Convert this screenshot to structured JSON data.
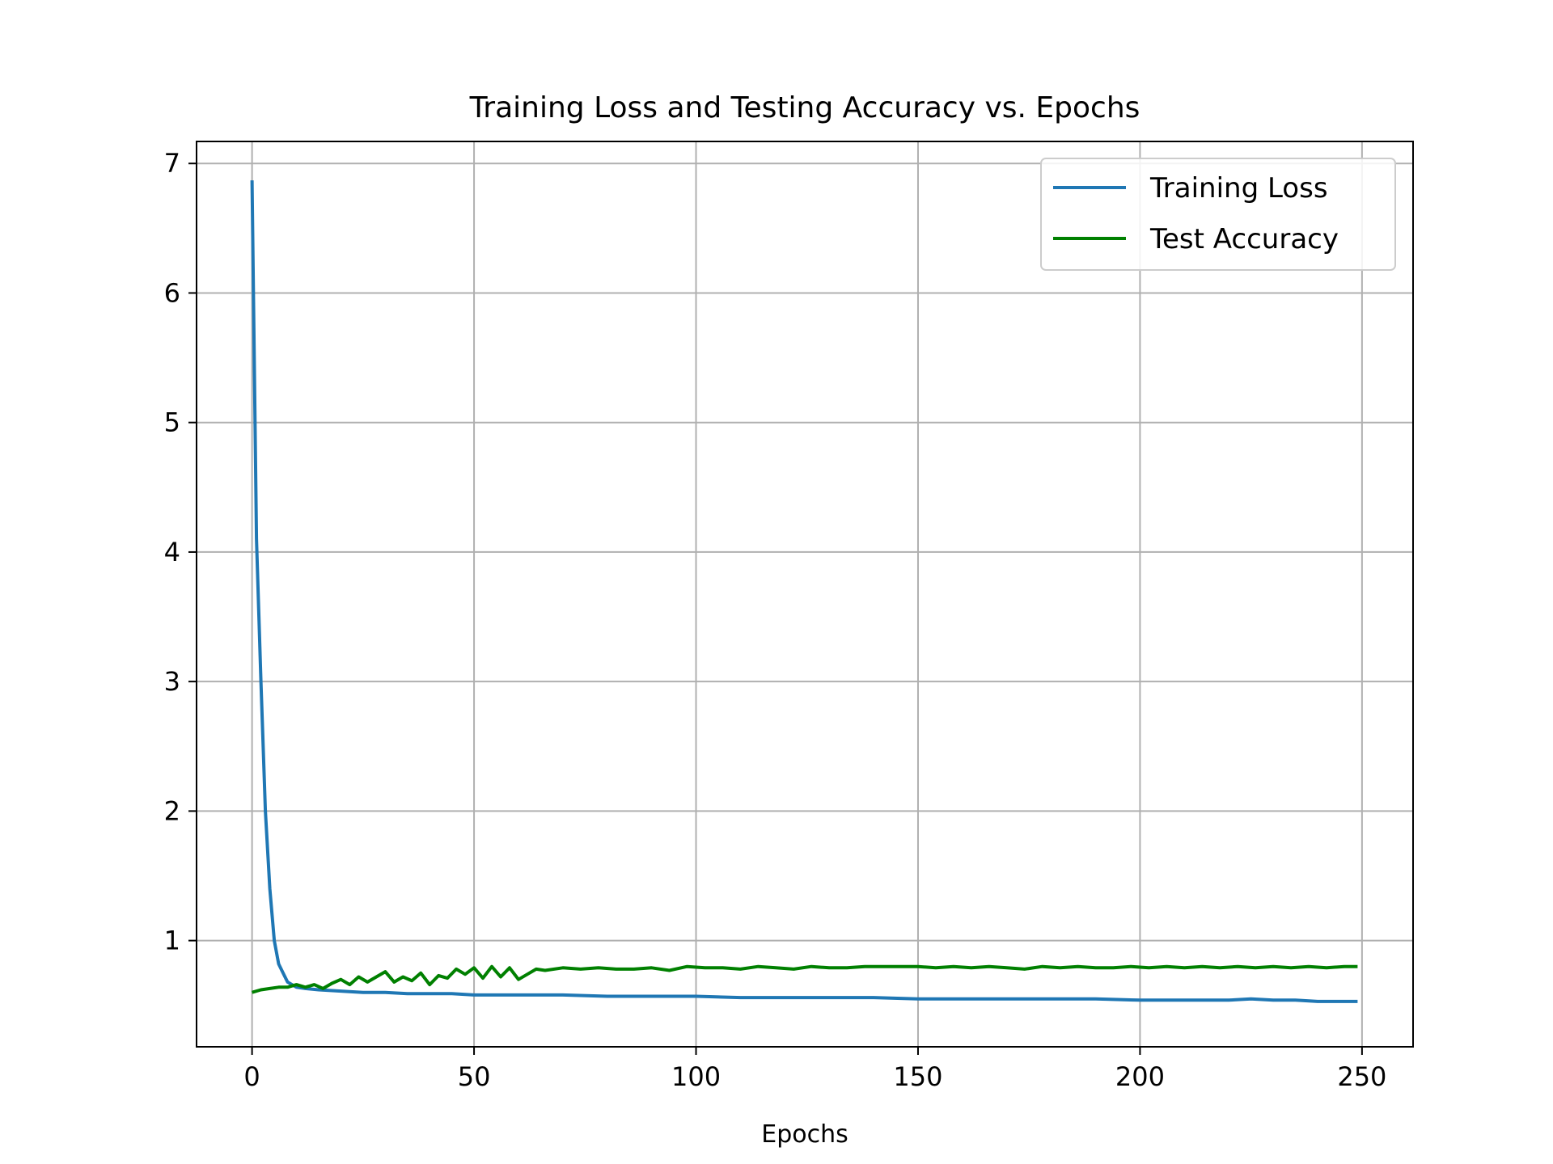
{
  "chart_data": {
    "type": "line",
    "title": "Training Loss and Testing Accuracy vs. Epochs",
    "xlabel": "Epochs",
    "ylabel": "",
    "xlim": [
      -12.5,
      261.5
    ],
    "ylim": [
      0.18,
      7.17
    ],
    "xticks": [
      0,
      50,
      100,
      150,
      200,
      250
    ],
    "yticks": [
      1,
      2,
      3,
      4,
      5,
      6,
      7
    ],
    "grid": true,
    "legend_position": "top-right",
    "series": [
      {
        "name": "Training Loss",
        "color": "#1f77b4",
        "points": [
          [
            0,
            6.87
          ],
          [
            1,
            4.1
          ],
          [
            2,
            3.0
          ],
          [
            3,
            2.0
          ],
          [
            4,
            1.4
          ],
          [
            5,
            1.0
          ],
          [
            6,
            0.82
          ],
          [
            7,
            0.75
          ],
          [
            8,
            0.68
          ],
          [
            10,
            0.64
          ],
          [
            12,
            0.63
          ],
          [
            15,
            0.62
          ],
          [
            20,
            0.61
          ],
          [
            25,
            0.6
          ],
          [
            30,
            0.6
          ],
          [
            35,
            0.59
          ],
          [
            40,
            0.59
          ],
          [
            45,
            0.59
          ],
          [
            50,
            0.58
          ],
          [
            55,
            0.58
          ],
          [
            60,
            0.58
          ],
          [
            70,
            0.58
          ],
          [
            80,
            0.57
          ],
          [
            90,
            0.57
          ],
          [
            100,
            0.57
          ],
          [
            110,
            0.56
          ],
          [
            120,
            0.56
          ],
          [
            130,
            0.56
          ],
          [
            140,
            0.56
          ],
          [
            150,
            0.55
          ],
          [
            160,
            0.55
          ],
          [
            170,
            0.55
          ],
          [
            180,
            0.55
          ],
          [
            190,
            0.55
          ],
          [
            200,
            0.54
          ],
          [
            210,
            0.54
          ],
          [
            220,
            0.54
          ],
          [
            225,
            0.55
          ],
          [
            230,
            0.54
          ],
          [
            235,
            0.54
          ],
          [
            240,
            0.53
          ],
          [
            245,
            0.53
          ],
          [
            249,
            0.53
          ]
        ]
      },
      {
        "name": "Test Accuracy",
        "color": "#008000",
        "points": [
          [
            0,
            0.6
          ],
          [
            2,
            0.62
          ],
          [
            4,
            0.63
          ],
          [
            6,
            0.64
          ],
          [
            8,
            0.64
          ],
          [
            10,
            0.66
          ],
          [
            12,
            0.64
          ],
          [
            14,
            0.66
          ],
          [
            16,
            0.63
          ],
          [
            18,
            0.67
          ],
          [
            20,
            0.7
          ],
          [
            22,
            0.66
          ],
          [
            24,
            0.72
          ],
          [
            26,
            0.68
          ],
          [
            28,
            0.72
          ],
          [
            30,
            0.76
          ],
          [
            32,
            0.68
          ],
          [
            34,
            0.72
          ],
          [
            36,
            0.69
          ],
          [
            38,
            0.75
          ],
          [
            40,
            0.66
          ],
          [
            42,
            0.73
          ],
          [
            44,
            0.71
          ],
          [
            46,
            0.78
          ],
          [
            48,
            0.74
          ],
          [
            50,
            0.79
          ],
          [
            52,
            0.71
          ],
          [
            54,
            0.8
          ],
          [
            56,
            0.72
          ],
          [
            58,
            0.79
          ],
          [
            60,
            0.7
          ],
          [
            62,
            0.74
          ],
          [
            64,
            0.78
          ],
          [
            66,
            0.77
          ],
          [
            70,
            0.79
          ],
          [
            74,
            0.78
          ],
          [
            78,
            0.79
          ],
          [
            82,
            0.78
          ],
          [
            86,
            0.78
          ],
          [
            90,
            0.79
          ],
          [
            94,
            0.77
          ],
          [
            98,
            0.8
          ],
          [
            102,
            0.79
          ],
          [
            106,
            0.79
          ],
          [
            110,
            0.78
          ],
          [
            114,
            0.8
          ],
          [
            118,
            0.79
          ],
          [
            122,
            0.78
          ],
          [
            126,
            0.8
          ],
          [
            130,
            0.79
          ],
          [
            134,
            0.79
          ],
          [
            138,
            0.8
          ],
          [
            142,
            0.8
          ],
          [
            146,
            0.8
          ],
          [
            150,
            0.8
          ],
          [
            154,
            0.79
          ],
          [
            158,
            0.8
          ],
          [
            162,
            0.79
          ],
          [
            166,
            0.8
          ],
          [
            170,
            0.79
          ],
          [
            174,
            0.78
          ],
          [
            178,
            0.8
          ],
          [
            182,
            0.79
          ],
          [
            186,
            0.8
          ],
          [
            190,
            0.79
          ],
          [
            194,
            0.79
          ],
          [
            198,
            0.8
          ],
          [
            202,
            0.79
          ],
          [
            206,
            0.8
          ],
          [
            210,
            0.79
          ],
          [
            214,
            0.8
          ],
          [
            218,
            0.79
          ],
          [
            222,
            0.8
          ],
          [
            226,
            0.79
          ],
          [
            230,
            0.8
          ],
          [
            234,
            0.79
          ],
          [
            238,
            0.8
          ],
          [
            242,
            0.79
          ],
          [
            246,
            0.8
          ],
          [
            249,
            0.8
          ]
        ]
      }
    ]
  }
}
